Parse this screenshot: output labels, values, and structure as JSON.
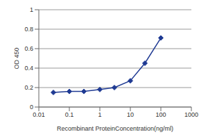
{
  "chart_data": {
    "type": "line",
    "x_label": "Recombinant ProteinConcentration(ng/ml)",
    "y_label": "OD 450",
    "x": [
      0.03,
      0.1,
      0.3,
      1,
      3,
      10,
      30,
      100
    ],
    "values": [
      0.15,
      0.16,
      0.16,
      0.18,
      0.2,
      0.27,
      0.45,
      0.71
    ],
    "color": "#1f3a93",
    "marker": "diamond",
    "log": "x",
    "xlim": [
      0.01,
      1000
    ],
    "xticks": [
      0.01,
      0.1,
      1,
      10,
      100,
      1000
    ],
    "ylim": [
      0,
      1
    ],
    "yticks": [
      0,
      0.2,
      0.4,
      0.6,
      0.8,
      1
    ],
    "grid": true
  }
}
